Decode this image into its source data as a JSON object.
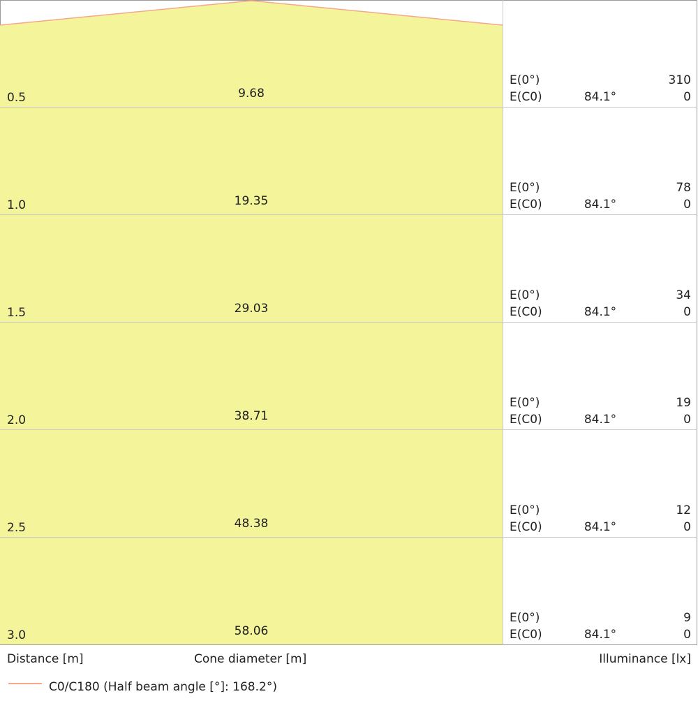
{
  "chart_data": {
    "type": "cone-diagram",
    "colors": {
      "cone_fill": "#f4f49a",
      "cone_edge": "#f5a88c",
      "grid": "#c8c8c8"
    },
    "rows": [
      {
        "distance": "0.5",
        "diameter": "9.68",
        "e0_label": "E(0°)",
        "e0": "310",
        "ec0_label": "E(C0)",
        "angle": "84.1°",
        "ec0": "0"
      },
      {
        "distance": "1.0",
        "diameter": "19.35",
        "e0_label": "E(0°)",
        "e0": "78",
        "ec0_label": "E(C0)",
        "angle": "84.1°",
        "ec0": "0"
      },
      {
        "distance": "1.5",
        "diameter": "29.03",
        "e0_label": "E(0°)",
        "e0": "34",
        "ec0_label": "E(C0)",
        "angle": "84.1°",
        "ec0": "0"
      },
      {
        "distance": "2.0",
        "diameter": "38.71",
        "e0_label": "E(0°)",
        "e0": "19",
        "ec0_label": "E(C0)",
        "angle": "84.1°",
        "ec0": "0"
      },
      {
        "distance": "2.5",
        "diameter": "48.38",
        "e0_label": "E(0°)",
        "e0": "12",
        "ec0_label": "E(C0)",
        "angle": "84.1°",
        "ec0": "0"
      },
      {
        "distance": "3.0",
        "diameter": "58.06",
        "e0_label": "E(0°)",
        "e0": "9",
        "ec0_label": "E(C0)",
        "angle": "84.1°",
        "ec0": "0"
      }
    ],
    "half_beam_angle_deg": 168.2,
    "xlabel_distance": "Distance [m]",
    "xlabel_diameter": "Cone diameter [m]",
    "xlabel_illuminance": "Illuminance [lx]",
    "legend": [
      {
        "name": "C0/C180 (Half beam angle [°]: 168.2°)",
        "color": "#f5a88c"
      }
    ],
    "legend_placement": "bottom-left"
  }
}
